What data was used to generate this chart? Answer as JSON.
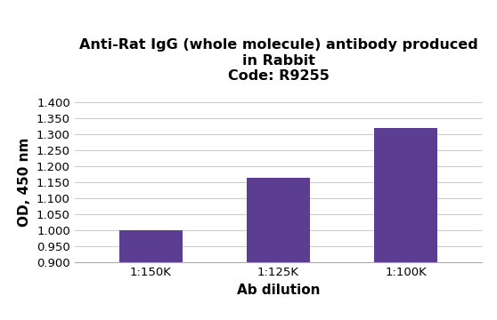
{
  "title_line1": "Anti-Rat IgG (whole molecule) antibody produced",
  "title_line2": "in Rabbit",
  "title_line3": "Code: R9255",
  "categories": [
    "1:150K",
    "1:125K",
    "1:100K"
  ],
  "values": [
    1.0,
    1.165,
    1.32
  ],
  "bar_color": "#5b3d91",
  "xlabel": "Ab dilution",
  "ylabel": "OD, 450 nm",
  "ylim": [
    0.9,
    1.4
  ],
  "yticks": [
    0.9,
    0.95,
    1.0,
    1.05,
    1.1,
    1.15,
    1.2,
    1.25,
    1.3,
    1.35,
    1.4
  ],
  "ytick_labels": [
    "0.900",
    "0.950",
    "1.000",
    "1.050",
    "1.100",
    "1.150",
    "1.200",
    "1.250",
    "1.300",
    "1.350",
    "1.400"
  ],
  "background_color": "#ffffff",
  "grid_color": "#cccccc",
  "title_fontsize": 11.5,
  "axis_label_fontsize": 11,
  "tick_fontsize": 9.5,
  "bar_width": 0.5
}
